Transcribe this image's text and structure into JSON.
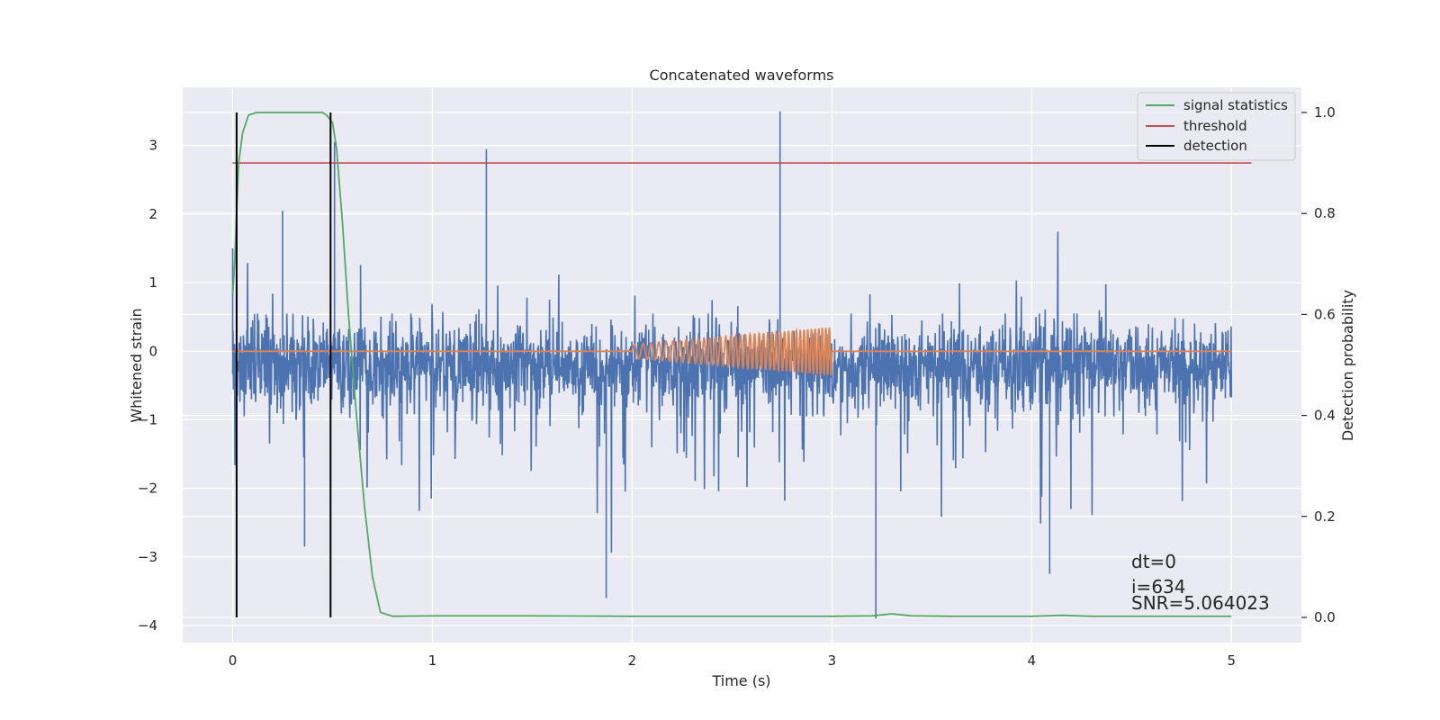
{
  "chart_data": {
    "type": "line",
    "title": "Concatenated waveforms",
    "xlabel": "Time (s)",
    "ylabel": "Whitened strain",
    "ylabel_right": "Detection probability",
    "xlim": [
      -0.25,
      5.35
    ],
    "ylim": [
      -4.25,
      3.85
    ],
    "ylim_right": [
      -0.05,
      1.05
    ],
    "xticks": [
      0,
      1,
      2,
      3,
      4,
      5
    ],
    "yticks": [
      -4,
      -3,
      -2,
      -1,
      0,
      1,
      2,
      3
    ],
    "yticks_right": [
      0.0,
      0.2,
      0.4,
      0.6,
      0.8,
      1.0
    ],
    "xtick_labels": [
      "0",
      "1",
      "2",
      "3",
      "4",
      "5"
    ],
    "ytick_labels": [
      "−4",
      "−3",
      "−2",
      "−1",
      "0",
      "1",
      "2",
      "3"
    ],
    "ytick_right_labels": [
      "0.0",
      "0.2",
      "0.4",
      "0.6",
      "0.8",
      "1.0"
    ],
    "grid": true,
    "legend_position": "top-right",
    "colors": {
      "noise": "#4c72b0",
      "chirp": "#dd8452",
      "signal_statistics": "#55a868",
      "threshold": "#c44e52",
      "detection": "#000000",
      "background": "#eaeaf2",
      "grid": "#ffffff"
    },
    "series": [
      {
        "name": "",
        "axis": "left",
        "kind": "whitened noise strain",
        "x_range": [
          0,
          5
        ],
        "typical_envelope": [
          -0.95,
          0.55
        ],
        "peaks_x": [
          0.0,
          0.02,
          0.25,
          0.36,
          0.51,
          1.27,
          1.87,
          2.74,
          3.22,
          4.09
        ],
        "peaks_y": [
          1.5,
          2.0,
          2.05,
          -2.85,
          3.05,
          2.95,
          -3.6,
          3.5,
          -3.9,
          -3.25
        ]
      },
      {
        "name": "",
        "axis": "left",
        "kind": "injected chirp",
        "x": [
          0.0,
          2.0,
          2.0,
          3.0,
          3.0,
          5.0
        ],
        "amplitude_start": 0.1,
        "amplitude_end": 0.35,
        "cycles": 40,
        "baseline_y": 0
      },
      {
        "name": "signal statistics",
        "axis": "right",
        "x": [
          0.0,
          0.01,
          0.02,
          0.03,
          0.05,
          0.08,
          0.12,
          0.2,
          0.3,
          0.4,
          0.45,
          0.47,
          0.5,
          0.52,
          0.55,
          0.58,
          0.62,
          0.66,
          0.7,
          0.74,
          0.8,
          1.0,
          1.5,
          2.0,
          3.0,
          3.2,
          3.3,
          3.4,
          3.6,
          4.0,
          4.15,
          4.3,
          5.0
        ],
        "y": [
          0.64,
          0.7,
          0.8,
          0.9,
          0.96,
          0.995,
          1.0,
          1.0,
          1.0,
          1.0,
          1.0,
          0.995,
          0.98,
          0.93,
          0.78,
          0.6,
          0.4,
          0.22,
          0.08,
          0.01,
          0.002,
          0.003,
          0.003,
          0.002,
          0.002,
          0.003,
          0.007,
          0.003,
          0.002,
          0.002,
          0.004,
          0.002,
          0.002
        ]
      },
      {
        "name": "threshold",
        "axis": "right",
        "x": [
          0.0,
          5.1
        ],
        "y": [
          0.9,
          0.9
        ]
      },
      {
        "name": "detection",
        "axis": "right",
        "x_positions": [
          0.02,
          0.49
        ],
        "y_range": [
          0.0,
          1.0
        ]
      }
    ],
    "legend": [
      "signal statistics",
      "threshold",
      "detection"
    ],
    "annotations": [
      "dt=0",
      "i=634",
      "SNR=5.064023"
    ]
  }
}
